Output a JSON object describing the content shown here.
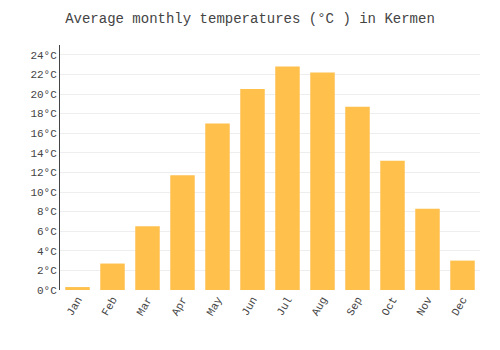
{
  "chart_data": {
    "type": "bar",
    "title": "Average monthly temperatures (°C ) in Kermen",
    "categories": [
      "Jan",
      "Feb",
      "Mar",
      "Apr",
      "May",
      "Jun",
      "Jul",
      "Aug",
      "Sep",
      "Oct",
      "Nov",
      "Dec"
    ],
    "values": [
      0.3,
      2.7,
      6.5,
      11.7,
      17.0,
      20.5,
      22.8,
      22.2,
      18.7,
      13.2,
      8.3,
      3.0
    ],
    "color": "#FFC04C",
    "ylim": [
      0,
      25
    ],
    "yticks": [
      {
        "value": 0,
        "label": "0°C"
      },
      {
        "value": 2,
        "label": "2°C"
      },
      {
        "value": 4,
        "label": "4°C"
      },
      {
        "value": 6,
        "label": "6°C"
      },
      {
        "value": 8,
        "label": "8°C"
      },
      {
        "value": 10,
        "label": "10°C"
      },
      {
        "value": 12,
        "label": "12°C"
      },
      {
        "value": 14,
        "label": "14°C"
      },
      {
        "value": 16,
        "label": "16°C"
      },
      {
        "value": 18,
        "label": "18°C"
      },
      {
        "value": 20,
        "label": "20°C"
      },
      {
        "value": 22,
        "label": "22°C"
      },
      {
        "value": 24,
        "label": "24°C"
      }
    ],
    "grid": true
  }
}
